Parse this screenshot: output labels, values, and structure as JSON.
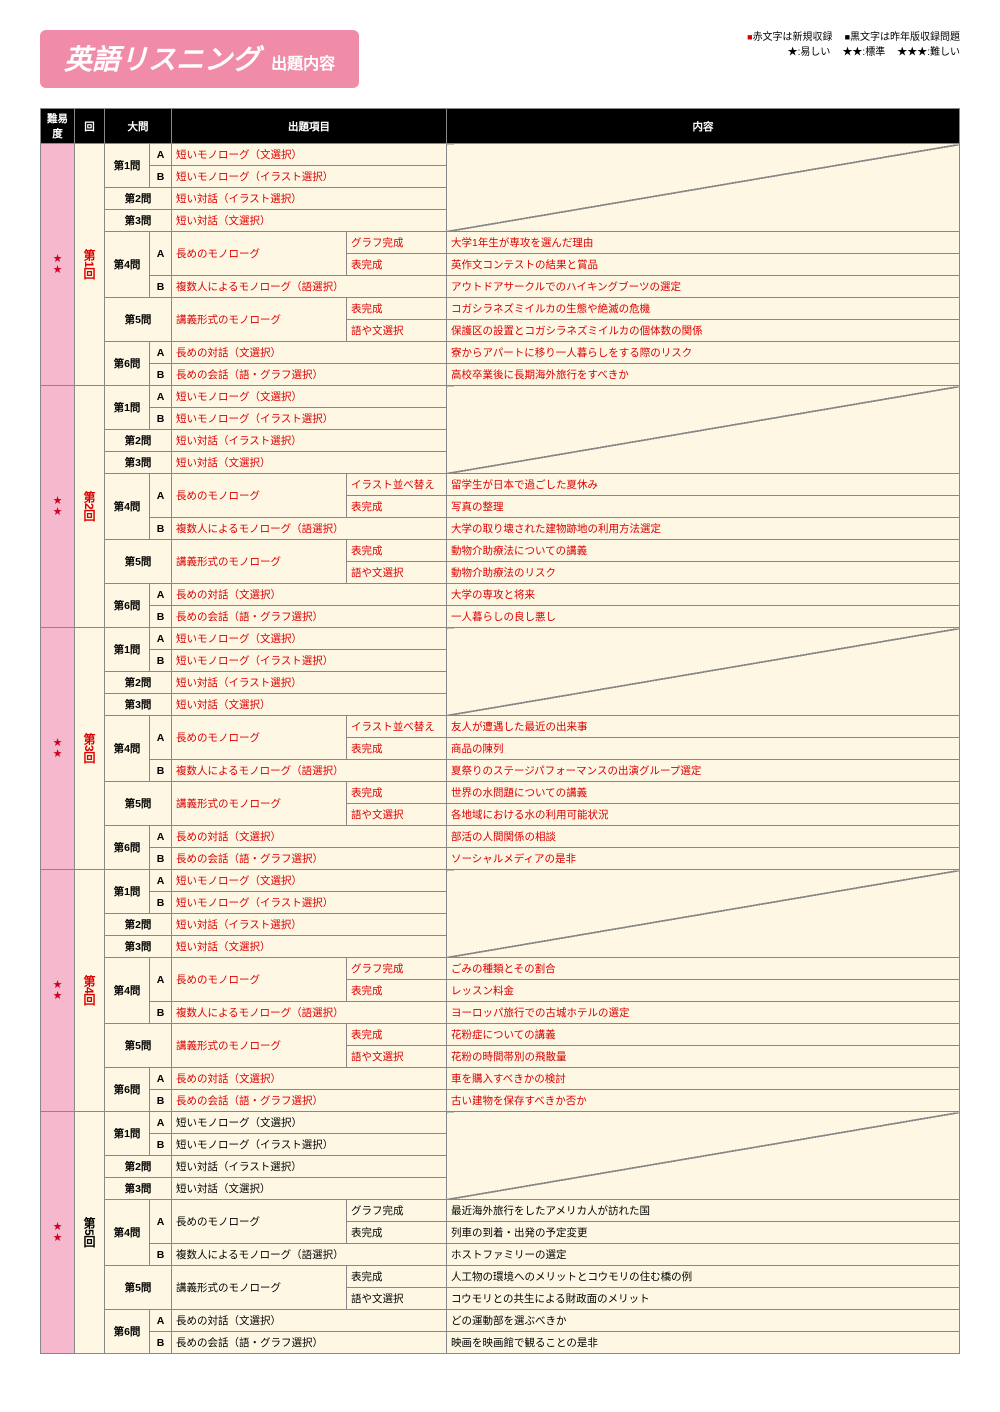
{
  "title": {
    "main": "英語リスニング",
    "sub": "出題内容"
  },
  "legend": {
    "red": "赤文字は新規収録",
    "black": "黒文字は昨年版収録問題",
    "easy": "★:易しい",
    "std": "★★:標準",
    "hard": "★★★:難しい"
  },
  "headers": {
    "diff": "難易度",
    "sess": "回",
    "q": "大問",
    "item": "出題項目",
    "content": "内容"
  },
  "stars": "★\n★",
  "sessions": [
    {
      "label": "第\n1\n回",
      "red": true,
      "diffRed": true,
      "rows": [
        {
          "q": "第1問",
          "s": "A",
          "i1": "短いモノローグ（文選択）",
          "span": 2,
          "diag": true,
          "ired": true
        },
        {
          "s": "B",
          "i1": "短いモノローグ（イラスト選択）",
          "span": 2,
          "diag": true,
          "ired": true
        },
        {
          "q": "第2問",
          "i1": "短い対話（イラスト選択）",
          "span": 2,
          "diag": true,
          "ired": true,
          "qspan": 2
        },
        {
          "q": "第3問",
          "i1": "短い対話（文選択）",
          "span": 2,
          "diag": true,
          "ired": true,
          "qspan": 2
        },
        {
          "q": "第4問",
          "s": "A",
          "i1": "長めのモノローグ",
          "i2": "グラフ完成",
          "c": "大学1年生が専攻を選んだ理由",
          "i1rs": 2,
          "ired": true,
          "cred": true
        },
        {
          "i2": "表完成",
          "c": "英作文コンテストの結果と賞品",
          "ired": true,
          "cred": true
        },
        {
          "s": "B",
          "i1": "複数人によるモノローグ（語選択）",
          "span": 2,
          "c": "アウトドアサークルでのハイキングブーツの選定",
          "ired": true,
          "cred": true
        },
        {
          "q": "第5問",
          "i1": "講義形式のモノローグ",
          "i2": "表完成",
          "c": "コガシラネズミイルカの生態や絶滅の危機",
          "i1rs": 2,
          "qspan": 2,
          "qrs": 2,
          "ired": true,
          "cred": true
        },
        {
          "i2": "語や文選択",
          "c": "保護区の設置とコガシラネズミイルカの個体数の関係",
          "ired": true,
          "cred": true
        },
        {
          "q": "第6問",
          "s": "A",
          "i1": "長めの対話（文選択）",
          "span": 2,
          "c": "寮からアパートに移り一人暮らしをする際のリスク",
          "ired": true,
          "cred": true
        },
        {
          "s": "B",
          "i1": "長めの会話（語・グラフ選択）",
          "span": 2,
          "c": "高校卒業後に長期海外旅行をすべきか",
          "ired": true,
          "cred": true
        }
      ]
    },
    {
      "label": "第\n2\n回",
      "red": true,
      "rows": [
        {
          "q": "第1問",
          "s": "A",
          "i1": "短いモノローグ（文選択）",
          "span": 2,
          "diag": true,
          "ired": true
        },
        {
          "s": "B",
          "i1": "短いモノローグ（イラスト選択）",
          "span": 2,
          "diag": true,
          "ired": true
        },
        {
          "q": "第2問",
          "i1": "短い対話（イラスト選択）",
          "span": 2,
          "diag": true,
          "ired": true,
          "qspan": 2
        },
        {
          "q": "第3問",
          "i1": "短い対話（文選択）",
          "span": 2,
          "diag": true,
          "ired": true,
          "qspan": 2
        },
        {
          "q": "第4問",
          "s": "A",
          "i1": "長めのモノローグ",
          "i2": "イラスト並べ替え",
          "c": "留学生が日本で過ごした夏休み",
          "i1rs": 2,
          "ired": true,
          "cred": true
        },
        {
          "i2": "表完成",
          "c": "写真の整理",
          "ired": true,
          "cred": true
        },
        {
          "s": "B",
          "i1": "複数人によるモノローグ（語選択）",
          "span": 2,
          "c": "大学の取り壊された建物跡地の利用方法選定",
          "ired": true,
          "cred": true
        },
        {
          "q": "第5問",
          "i1": "講義形式のモノローグ",
          "i2": "表完成",
          "c": "動物介助療法についての講義",
          "i1rs": 2,
          "qspan": 2,
          "qrs": 2,
          "ired": true,
          "cred": true
        },
        {
          "i2": "語や文選択",
          "c": "動物介助療法のリスク",
          "ired": true,
          "cred": true
        },
        {
          "q": "第6問",
          "s": "A",
          "i1": "長めの対話（文選択）",
          "span": 2,
          "c": "大学の専攻と将来",
          "ired": true,
          "cred": true
        },
        {
          "s": "B",
          "i1": "長めの会話（語・グラフ選択）",
          "span": 2,
          "c": "一人暮らしの良し悪し",
          "ired": true,
          "cred": true
        }
      ]
    },
    {
      "label": "第\n3\n回",
      "red": true,
      "diffRed": true,
      "rows": [
        {
          "q": "第1問",
          "s": "A",
          "i1": "短いモノローグ（文選択）",
          "span": 2,
          "diag": true,
          "ired": true
        },
        {
          "s": "B",
          "i1": "短いモノローグ（イラスト選択）",
          "span": 2,
          "diag": true,
          "ired": true
        },
        {
          "q": "第2問",
          "i1": "短い対話（イラスト選択）",
          "span": 2,
          "diag": true,
          "ired": true,
          "qspan": 2
        },
        {
          "q": "第3問",
          "i1": "短い対話（文選択）",
          "span": 2,
          "diag": true,
          "ired": true,
          "qspan": 2
        },
        {
          "q": "第4問",
          "s": "A",
          "i1": "長めのモノローグ",
          "i2": "イラスト並べ替え",
          "c": "友人が遭遇した最近の出来事",
          "i1rs": 2,
          "ired": true,
          "cred": true
        },
        {
          "i2": "表完成",
          "c": "商品の陳列",
          "ired": true,
          "cred": true
        },
        {
          "s": "B",
          "i1": "複数人によるモノローグ（語選択）",
          "span": 2,
          "c": "夏祭りのステージパフォーマンスの出演グループ選定",
          "ired": true,
          "cred": true
        },
        {
          "q": "第5問",
          "i1": "講義形式のモノローグ",
          "i2": "表完成",
          "c": "世界の水問題についての講義",
          "i1rs": 2,
          "qspan": 2,
          "qrs": 2,
          "ired": true,
          "cred": true
        },
        {
          "i2": "語や文選択",
          "c": "各地域における水の利用可能状況",
          "ired": true,
          "cred": true
        },
        {
          "q": "第6問",
          "s": "A",
          "i1": "長めの対話（文選択）",
          "span": 2,
          "c": "部活の人間関係の相談",
          "ired": true,
          "cred": true
        },
        {
          "s": "B",
          "i1": "長めの会話（語・グラフ選択）",
          "span": 2,
          "c": "ソーシャルメディアの是非",
          "ired": true,
          "cred": true
        }
      ]
    },
    {
      "label": "第\n4\n回",
      "red": true,
      "rows": [
        {
          "q": "第1問",
          "s": "A",
          "i1": "短いモノローグ（文選択）",
          "span": 2,
          "diag": true,
          "ired": true
        },
        {
          "s": "B",
          "i1": "短いモノローグ（イラスト選択）",
          "span": 2,
          "diag": true,
          "ired": true
        },
        {
          "q": "第2問",
          "i1": "短い対話（イラスト選択）",
          "span": 2,
          "diag": true,
          "ired": true,
          "qspan": 2
        },
        {
          "q": "第3問",
          "i1": "短い対話（文選択）",
          "span": 2,
          "diag": true,
          "ired": true,
          "qspan": 2
        },
        {
          "q": "第4問",
          "s": "A",
          "i1": "長めのモノローグ",
          "i2": "グラフ完成",
          "c": "ごみの種類とその割合",
          "i1rs": 2,
          "ired": true,
          "cred": true
        },
        {
          "i2": "表完成",
          "c": "レッスン料金",
          "ired": true,
          "cred": true
        },
        {
          "s": "B",
          "i1": "複数人によるモノローグ（語選択）",
          "span": 2,
          "c": "ヨーロッパ旅行での古城ホテルの選定",
          "ired": true,
          "cred": true
        },
        {
          "q": "第5問",
          "i1": "講義形式のモノローグ",
          "i2": "表完成",
          "c": "花粉症についての講義",
          "i1rs": 2,
          "qspan": 2,
          "qrs": 2,
          "ired": true,
          "cred": true
        },
        {
          "i2": "語や文選択",
          "c": "花粉の時間帯別の飛散量",
          "ired": true,
          "cred": true
        },
        {
          "q": "第6問",
          "s": "A",
          "i1": "長めの対話（文選択）",
          "span": 2,
          "c": "車を購入すべきかの検討",
          "ired": true,
          "cred": true
        },
        {
          "s": "B",
          "i1": "長めの会話（語・グラフ選択）",
          "span": 2,
          "c": "古い建物を保存すべきか否か",
          "ired": true,
          "cred": true
        }
      ]
    },
    {
      "label": "第\n5\n回",
      "red": false,
      "rows": [
        {
          "q": "第1問",
          "s": "A",
          "i1": "短いモノローグ（文選択）",
          "span": 2,
          "diag": true
        },
        {
          "s": "B",
          "i1": "短いモノローグ（イラスト選択）",
          "span": 2,
          "diag": true
        },
        {
          "q": "第2問",
          "i1": "短い対話（イラスト選択）",
          "span": 2,
          "diag": true,
          "qspan": 2
        },
        {
          "q": "第3問",
          "i1": "短い対話（文選択）",
          "span": 2,
          "diag": true,
          "qspan": 2
        },
        {
          "q": "第4問",
          "s": "A",
          "i1": "長めのモノローグ",
          "i2": "グラフ完成",
          "c": "最近海外旅行をしたアメリカ人が訪れた国",
          "i1rs": 2
        },
        {
          "i2": "表完成",
          "c": "列車の到着・出発の予定変更"
        },
        {
          "s": "B",
          "i1": "複数人によるモノローグ（語選択）",
          "span": 2,
          "c": "ホストファミリーの選定"
        },
        {
          "q": "第5問",
          "i1": "講義形式のモノローグ",
          "i2": "表完成",
          "c": "人工物の環境へのメリットとコウモリの住む橋の例",
          "i1rs": 2,
          "qspan": 2,
          "qrs": 2
        },
        {
          "i2": "語や文選択",
          "c": "コウモリとの共生による財政面のメリット"
        },
        {
          "q": "第6問",
          "s": "A",
          "i1": "長めの対話（文選択）",
          "span": 2,
          "c": "どの運動部を選ぶべきか"
        },
        {
          "s": "B",
          "i1": "長めの会話（語・グラフ選択）",
          "span": 2,
          "c": "映画を映画館で観ることの是非"
        }
      ]
    }
  ]
}
